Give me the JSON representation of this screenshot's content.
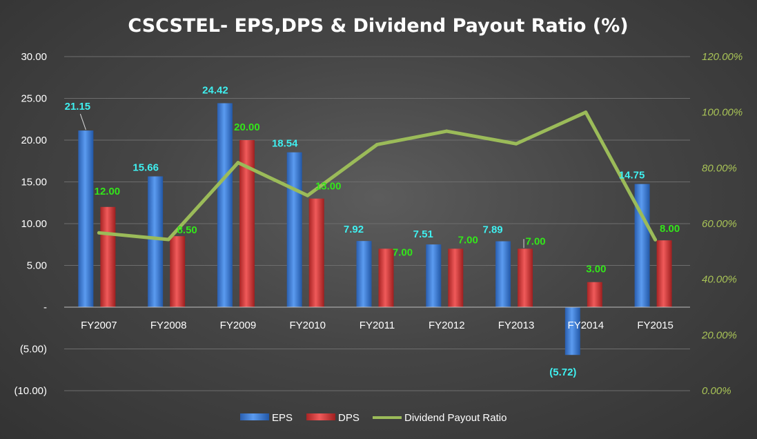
{
  "chart_data": {
    "type": "bar",
    "title": "CSCSTEL- EPS,DPS & Dividend Payout Ratio (%)",
    "categories": [
      "FY2007",
      "FY2008",
      "FY2009",
      "FY2010",
      "FY2011",
      "FY2012",
      "FY2013",
      "FY2014",
      "FY2015"
    ],
    "series": [
      {
        "name": "EPS",
        "type": "bar",
        "axis": "left",
        "color": "#3b78d8",
        "values": [
          21.15,
          15.66,
          24.42,
          18.54,
          7.92,
          7.51,
          7.89,
          -5.72,
          14.75
        ],
        "labels": [
          "21.15",
          "15.66",
          "24.42",
          "18.54",
          "7.92",
          "7.51",
          "7.89",
          "(5.72)",
          "14.75"
        ]
      },
      {
        "name": "DPS",
        "type": "bar",
        "axis": "left",
        "color": "#d93a3a",
        "values": [
          12.0,
          8.5,
          20.0,
          13.0,
          7.0,
          7.0,
          7.0,
          3.0,
          8.0
        ],
        "labels": [
          "12.00",
          "8.50",
          "20.00",
          "13.00",
          "7.00",
          "7.00",
          "7.00",
          "3.00",
          "8.00"
        ]
      },
      {
        "name": "Dividend Payout Ratio",
        "type": "line",
        "axis": "right",
        "color": "#9bbb59",
        "values": [
          0.567,
          0.543,
          0.819,
          0.701,
          0.884,
          0.932,
          0.887,
          1.0,
          0.542
        ]
      }
    ],
    "ylim": [
      -10,
      30
    ],
    "yticks": [
      "30.00",
      "25.00",
      "20.00",
      "15.00",
      "10.00",
      "5.00",
      "-",
      "(5.00)",
      "(10.00)"
    ],
    "y2lim": [
      0,
      1.2
    ],
    "y2ticks": [
      "120.00%",
      "100.00%",
      "80.00%",
      "60.00%",
      "40.00%",
      "20.00%",
      "0.00%"
    ],
    "legend": [
      "EPS",
      "DPS",
      "Dividend Payout Ratio"
    ],
    "legend_position": "bottom",
    "grid": true
  }
}
